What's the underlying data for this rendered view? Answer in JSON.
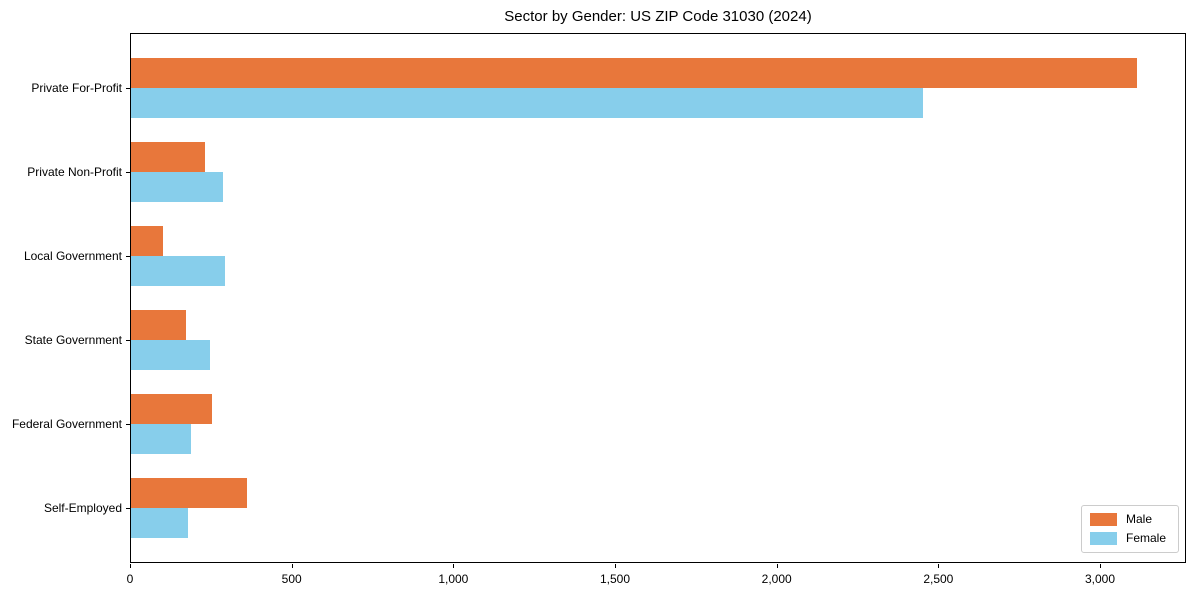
{
  "chart_data": {
    "type": "bar",
    "orientation": "horizontal",
    "title": "Sector by Gender: US ZIP Code 31030 (2024)",
    "categories": [
      "Private For-Profit",
      "Private Non-Profit",
      "Local Government",
      "State Government",
      "Federal Government",
      "Self-Employed"
    ],
    "series": [
      {
        "name": "Male",
        "color": "#E8773B",
        "values": [
          3110,
          230,
          100,
          170,
          250,
          360
        ]
      },
      {
        "name": "Female",
        "color": "#87CEEB",
        "values": [
          2450,
          285,
          290,
          245,
          185,
          175
        ]
      }
    ],
    "xlabel": "",
    "ylabel": "",
    "xlim": [
      0,
      3266
    ],
    "xticks": [
      0,
      500,
      1000,
      1500,
      2000,
      2500,
      3000
    ],
    "xtick_labels": [
      "0",
      "500",
      "1,000",
      "1,500",
      "2,000",
      "2,500",
      "3,000"
    ],
    "grid": false,
    "legend_position": "lower right",
    "frame_color": "#000000",
    "background_color": "#ffffff"
  }
}
